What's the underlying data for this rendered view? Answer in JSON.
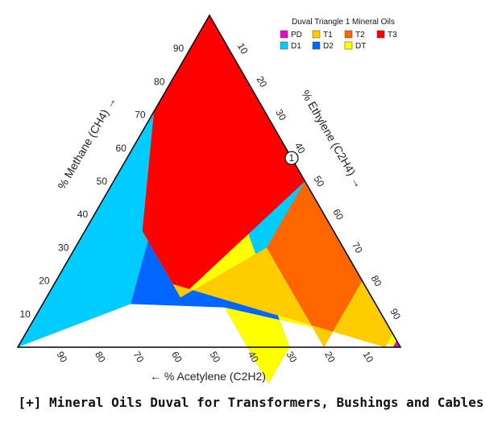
{
  "caption": "[+] Mineral Oils Duval for Transformers, Bushings and Cables",
  "chart_data": {
    "type": "ternary",
    "title": "Duval Triangle 1 Mineral Oils",
    "axes": {
      "methane": {
        "label": "% Methane (CH4) →",
        "ticks": [
          "10",
          "20",
          "30",
          "40",
          "50",
          "60",
          "70",
          "80",
          "90"
        ]
      },
      "ethylene": {
        "label": "% Ethylene (C2H4) →",
        "ticks": [
          "10",
          "20",
          "30",
          "40",
          "50",
          "60",
          "70",
          "80",
          "90"
        ]
      },
      "acetylene": {
        "label": "← % Acetylene (C2H2)",
        "ticks": [
          "90",
          "80",
          "70",
          "60",
          "50",
          "40",
          "30",
          "20",
          "10"
        ]
      }
    },
    "legend": [
      {
        "code": "PD",
        "color": "#e10ad6"
      },
      {
        "code": "T1",
        "color": "#ffcc00"
      },
      {
        "code": "T2",
        "color": "#ff6600"
      },
      {
        "code": "T3",
        "color": "#ff0000"
      },
      {
        "code": "D1",
        "color": "#00ccff"
      },
      {
        "code": "D2",
        "color": "#0066ff"
      },
      {
        "code": "DT",
        "color": "#ffff00"
      }
    ],
    "zones": [
      {
        "code": "D1",
        "color": "#00ccff",
        "points": [
          [
            0,
            0
          ],
          [
            0,
            87
          ],
          [
            64,
            23
          ],
          [
            100,
            0
          ]
        ]
      },
      {
        "code": "D2",
        "color": "#0066ff",
        "points": [
          [
            0,
            0
          ],
          [
            64,
            23
          ],
          [
            40,
            48
          ],
          [
            40,
            71
          ],
          [
            29,
            71
          ],
          [
            13,
            0
          ]
        ]
      },
      {
        "code": "DT",
        "color": "#ffff00",
        "points": [
          [
            0,
            96
          ],
          [
            0,
            100
          ],
          [
            40,
            48
          ],
          [
            40,
            71
          ],
          [
            29,
            71
          ],
          [
            13,
            0
          ],
          [
            29,
            0
          ],
          [
            50,
            15
          ],
          [
            50,
            31
          ],
          [
            4,
            96
          ]
        ]
      },
      {
        "code": "T3",
        "color": "#ff0000",
        "points": [
          [
            50,
            15
          ],
          [
            29,
            0
          ],
          [
            0,
            0
          ],
          [
            0,
            50
          ],
          [
            50,
            35
          ],
          [
            50,
            31
          ]
        ]
      },
      {
        "code": "T2",
        "color": "#ff6600",
        "points": [
          [
            20,
            50
          ],
          [
            0,
            50
          ],
          [
            0,
            80
          ],
          [
            20,
            80
          ]
        ]
      },
      {
        "code": "T1",
        "color": "#ffcc00",
        "points": [
          [
            4,
            96
          ],
          [
            0,
            96
          ],
          [
            0,
            80
          ],
          [
            20,
            80
          ],
          [
            20,
            50
          ],
          [
            50,
            35
          ],
          [
            50,
            31
          ]
        ]
      },
      {
        "code": "PD",
        "color": "#e10ad6",
        "points": [
          [
            0,
            98
          ],
          [
            0,
            100
          ],
          [
            2,
            98
          ]
        ]
      }
    ],
    "marker": {
      "label": "1",
      "acetylene": 0,
      "ethylene": 43,
      "methane": 57
    }
  }
}
